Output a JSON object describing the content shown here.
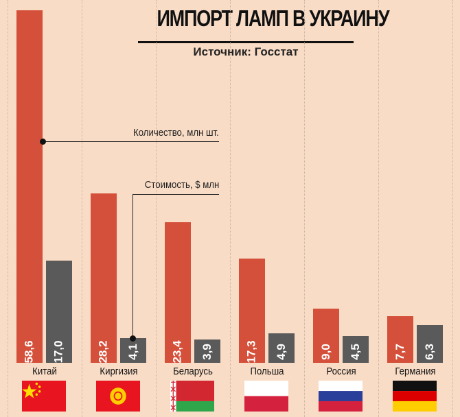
{
  "title": "ИМПОРТ ЛАМП В УКРАИНУ",
  "source": "Источник: Госстат",
  "colors": {
    "quantity": "#d5503a",
    "value": "#5a5a5a",
    "background": "#f9dcc6"
  },
  "chart_data": {
    "type": "bar",
    "title": "ИМПОРТ ЛАМП В УКРАИНУ",
    "categories": [
      "Китай",
      "Киргизия",
      "Беларусь",
      "Польша",
      "Россия",
      "Германия"
    ],
    "series": [
      {
        "name": "Количество, млн шт.",
        "values": [
          58.6,
          28.2,
          23.4,
          17.3,
          9.0,
          7.7
        ],
        "labels": [
          "58,6",
          "28,2",
          "23,4",
          "17,3",
          "9,0",
          "7,7"
        ]
      },
      {
        "name": "Стоимость, $ млн",
        "values": [
          17.0,
          4.1,
          3.9,
          4.9,
          4.5,
          6.3
        ],
        "labels": [
          "17,0",
          "4,1",
          "3,9",
          "4,9",
          "4,5",
          "6,3"
        ]
      }
    ],
    "flags": [
      "china-flag",
      "kyrgyzstan-flag",
      "belarus-flag",
      "poland-flag",
      "russia-flag",
      "germany-flag"
    ]
  }
}
